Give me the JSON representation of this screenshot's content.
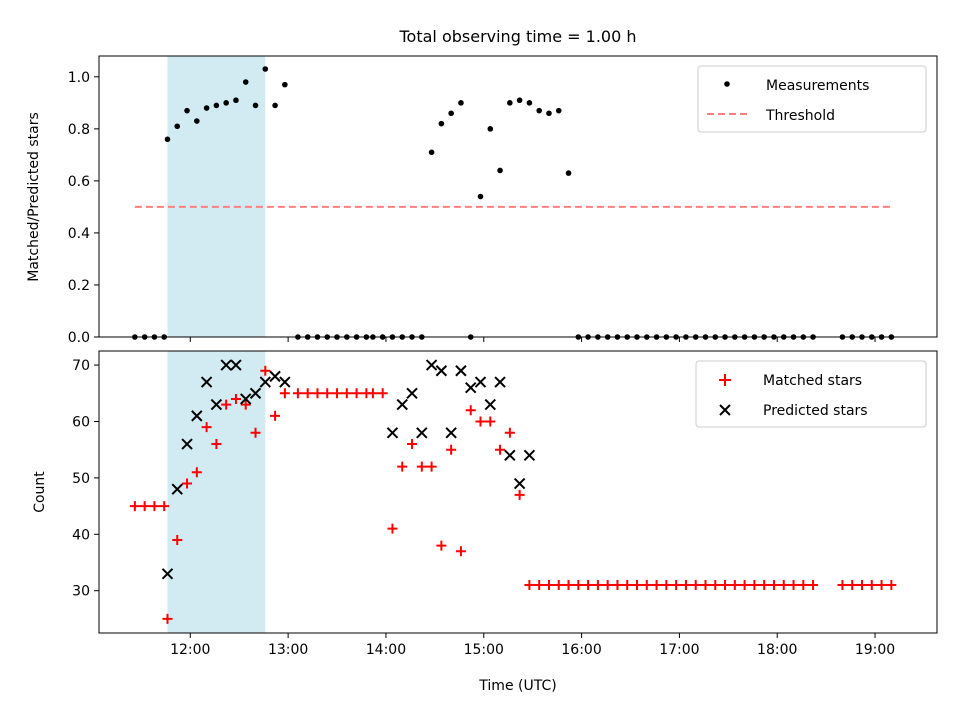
{
  "figure_title": "Total observing time = 1.00 h",
  "colors": {
    "highlight": "#add8e6",
    "threshold": "#ff7f7f",
    "measurement": "#000000",
    "matched": "#ff0000",
    "predicted": "#000000"
  },
  "chart_data": [
    {
      "type": "scatter",
      "ylabel": "Matched/Predicted stars",
      "xlim": [
        "11:04",
        "19:38"
      ],
      "ylim": [
        0,
        1.08
      ],
      "x_ticks": [
        "12:00",
        "13:00",
        "14:00",
        "15:00",
        "16:00",
        "17:00",
        "18:00",
        "19:00"
      ],
      "show_x_tick_labels": false,
      "y_ticks": [
        "0.0",
        "0.2",
        "0.4",
        "0.6",
        "0.8",
        "1.0"
      ],
      "y_tick_values": [
        0,
        0.2,
        0.4,
        0.6,
        0.8,
        1.0
      ],
      "highlight_span": [
        "11:46",
        "12:46"
      ],
      "legend": {
        "placement": "top-right",
        "entries": [
          "Measurements",
          "Threshold"
        ]
      },
      "threshold": {
        "name": "Threshold",
        "y": 0.5,
        "x_range": [
          "11:26",
          "19:10"
        ],
        "style": "dashed"
      },
      "series": [
        {
          "name": "Measurements",
          "marker": "dot",
          "x": [
            "11:26",
            "11:32",
            "11:38",
            "11:44",
            "11:46",
            "11:52",
            "11:58",
            "12:04",
            "12:10",
            "12:16",
            "12:22",
            "12:28",
            "12:34",
            "12:40",
            "12:46",
            "12:52",
            "12:58",
            "13:06",
            "13:12",
            "13:18",
            "13:24",
            "13:30",
            "13:36",
            "13:42",
            "13:48",
            "13:52",
            "13:58",
            "14:04",
            "14:10",
            "14:16",
            "14:22",
            "14:28",
            "14:34",
            "14:40",
            "14:46",
            "14:52",
            "14:58",
            "15:04",
            "15:10",
            "15:16",
            "15:22",
            "15:28",
            "15:34",
            "15:40",
            "15:46",
            "15:52",
            "15:58",
            "16:04",
            "16:10",
            "16:16",
            "16:22",
            "16:28",
            "16:34",
            "16:40",
            "16:46",
            "16:52",
            "16:58",
            "17:04",
            "17:10",
            "17:16",
            "17:22",
            "17:28",
            "17:34",
            "17:40",
            "17:46",
            "17:52",
            "17:58",
            "18:04",
            "18:10",
            "18:16",
            "18:22",
            "18:40",
            "18:46",
            "18:52",
            "18:58",
            "19:04",
            "19:10"
          ],
          "y": [
            0,
            0,
            0,
            0,
            0.76,
            0.81,
            0.87,
            0.83,
            0.88,
            0.89,
            0.9,
            0.91,
            0.98,
            0.89,
            1.03,
            0.89,
            0.97,
            0,
            0,
            0,
            0,
            0,
            0,
            0,
            0,
            0,
            0,
            0,
            0,
            0,
            0,
            0.71,
            0.82,
            0.86,
            0.9,
            0,
            0.54,
            0.8,
            0.64,
            0.9,
            0.91,
            0.9,
            0.87,
            0.86,
            0.87,
            0.63,
            0,
            0,
            0,
            0,
            0,
            0,
            0,
            0,
            0,
            0,
            0,
            0,
            0,
            0,
            0,
            0,
            0,
            0,
            0,
            0,
            0,
            0,
            0,
            0,
            0,
            0,
            0,
            0,
            0,
            0,
            0
          ],
          "note_x_order_corrected": true
        }
      ]
    },
    {
      "type": "scatter",
      "xlabel": "Time (UTC)",
      "ylabel": "Count",
      "xlim": [
        "11:04",
        "19:38"
      ],
      "ylim": [
        22.5,
        72.5
      ],
      "x_ticks": [
        "12:00",
        "13:00",
        "14:00",
        "15:00",
        "16:00",
        "17:00",
        "18:00",
        "19:00"
      ],
      "y_ticks": [
        "30",
        "40",
        "50",
        "60",
        "70"
      ],
      "y_tick_values": [
        30,
        40,
        50,
        60,
        70
      ],
      "highlight_span": [
        "11:46",
        "12:46"
      ],
      "legend": {
        "placement": "top-right",
        "entries": [
          "Matched stars",
          "Predicted stars"
        ]
      },
      "series": [
        {
          "name": "Matched stars",
          "marker": "plus",
          "x": [
            "11:26",
            "11:32",
            "11:38",
            "11:44",
            "11:46",
            "11:52",
            "11:58",
            "12:04",
            "12:10",
            "12:16",
            "12:22",
            "12:28",
            "12:34",
            "12:40",
            "12:46",
            "12:52",
            "12:58",
            "13:06",
            "13:12",
            "13:18",
            "13:24",
            "13:30",
            "13:36",
            "13:42",
            "13:48",
            "13:52",
            "13:58",
            "14:04",
            "14:10",
            "14:16",
            "14:22",
            "14:28",
            "14:34",
            "14:40",
            "14:46",
            "14:52",
            "14:58",
            "15:04",
            "15:10",
            "15:16",
            "15:22",
            "15:28",
            "15:34",
            "15:40",
            "15:46",
            "15:52",
            "15:58",
            "16:04",
            "16:10",
            "16:16",
            "16:22",
            "16:28",
            "16:34",
            "16:40",
            "16:46",
            "16:52",
            "16:58",
            "17:04",
            "17:10",
            "17:16",
            "17:22",
            "17:28",
            "17:34",
            "17:40",
            "17:46",
            "17:52",
            "17:58",
            "18:04",
            "18:10",
            "18:16",
            "18:22",
            "18:40",
            "18:46",
            "18:52",
            "18:58",
            "19:04",
            "19:10"
          ],
          "y": [
            45,
            45,
            45,
            45,
            25,
            39,
            49,
            51,
            59,
            56,
            63,
            64,
            63,
            58,
            69,
            61,
            65,
            65,
            65,
            65,
            65,
            65,
            65,
            65,
            65,
            65,
            65,
            41,
            52,
            56,
            52,
            52,
            38,
            55,
            37,
            62,
            60,
            60,
            55,
            58,
            47,
            31,
            31,
            31,
            31,
            31,
            31,
            31,
            31,
            31,
            31,
            31,
            31,
            31,
            31,
            31,
            31,
            31,
            31,
            31,
            31,
            31,
            31,
            31,
            31,
            31,
            31,
            31,
            31,
            31,
            31,
            31,
            31,
            31,
            31,
            31,
            31
          ]
        },
        {
          "name": "Predicted stars",
          "marker": "x",
          "x": [
            "11:46",
            "11:52",
            "11:58",
            "12:04",
            "12:10",
            "12:16",
            "12:22",
            "12:28",
            "12:34",
            "12:40",
            "12:46",
            "12:52",
            "12:58",
            "14:04",
            "14:10",
            "14:16",
            "14:22",
            "14:28",
            "14:34",
            "14:40",
            "14:46",
            "14:52",
            "14:58",
            "15:04",
            "15:10",
            "15:16",
            "15:22",
            "15:28"
          ],
          "y": [
            33,
            48,
            56,
            61,
            67,
            63,
            70,
            70,
            64,
            65,
            67,
            68,
            67,
            58,
            63,
            65,
            58,
            70,
            69,
            58,
            69,
            66,
            67,
            63,
            67,
            54,
            49,
            54
          ]
        }
      ]
    }
  ]
}
